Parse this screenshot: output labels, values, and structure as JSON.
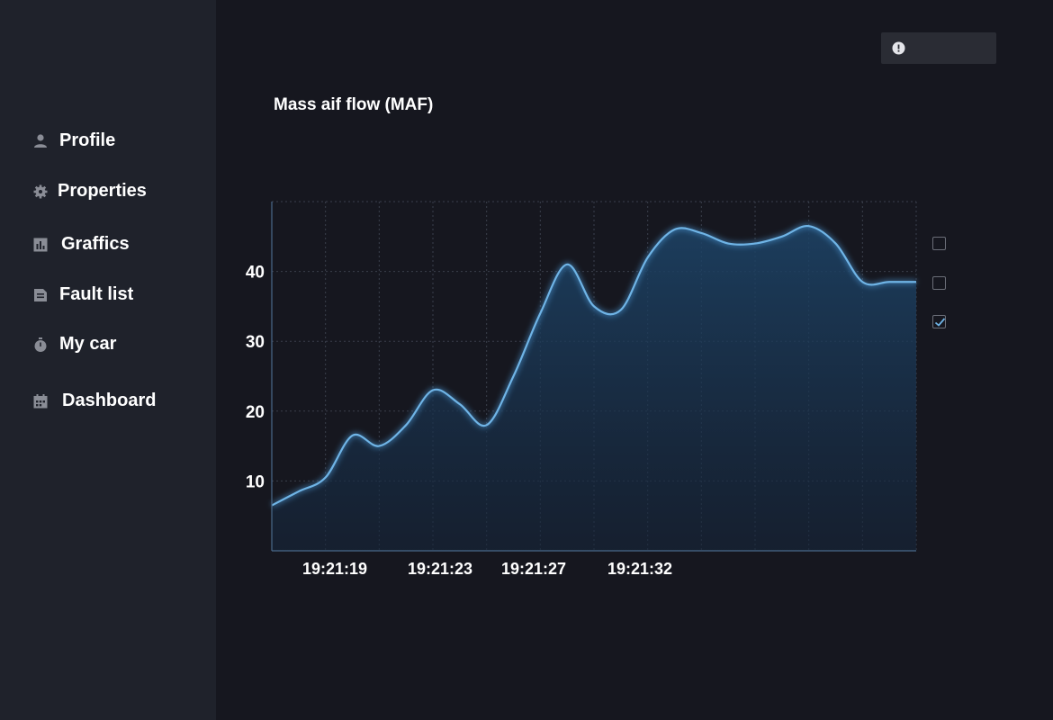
{
  "sidebar": {
    "items": [
      {
        "label": "Profile",
        "icon": "person-icon"
      },
      {
        "label": "Properties",
        "icon": "gear-icon"
      },
      {
        "label": "Graffics",
        "icon": "bar-chart-icon"
      },
      {
        "label": "Fault list",
        "icon": "document-icon"
      },
      {
        "label": "My car",
        "icon": "stopwatch-icon"
      },
      {
        "label": "Dashboard",
        "icon": "calendar-icon"
      }
    ]
  },
  "alert": {
    "icon": "exclamation-circle-icon"
  },
  "chart": {
    "title": "Mass aif flow (MAF)"
  },
  "legend_checkboxes": [
    {
      "checked": false
    },
    {
      "checked": false
    },
    {
      "checked": true
    }
  ],
  "colors": {
    "background": "#16171f",
    "sidebar": "#1f222b",
    "accent_line": "#6fb4e6",
    "area_fill": "#1b3a56"
  },
  "chart_data": {
    "type": "area",
    "title": "Mass aif flow (MAF)",
    "xlabel": "",
    "ylabel": "",
    "ylim": [
      0,
      50
    ],
    "yticks": [
      10,
      20,
      30,
      40
    ],
    "xtick_labels": [
      "19:21:19",
      "19:21:23",
      "19:21:27",
      "19:21:32"
    ],
    "grid": true,
    "series": [
      {
        "x": [
          0,
          1,
          2,
          3,
          4,
          5,
          6,
          7,
          8,
          9,
          10,
          11,
          12,
          13,
          14,
          15,
          16,
          17,
          18,
          19,
          20,
          21,
          22,
          23,
          24
        ],
        "values": [
          6.5,
          8.5,
          10.5,
          16.5,
          15,
          18,
          23,
          21,
          18,
          25,
          34,
          41,
          35,
          34.5,
          42,
          46,
          45.5,
          44,
          44,
          45,
          46.5,
          44,
          38.5,
          38.5,
          38.5
        ]
      }
    ]
  }
}
